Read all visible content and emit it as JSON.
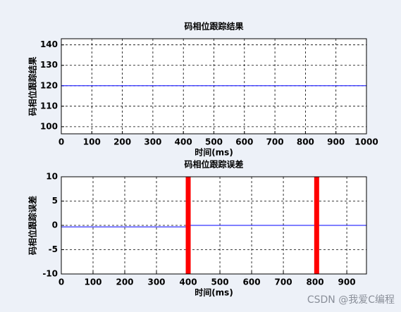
{
  "chart_data": [
    {
      "type": "line",
      "title": "码相位跟踪结果",
      "x_label": "时间(ms)",
      "y_label": "码相位跟踪结果",
      "xlim": [
        0,
        1000
      ],
      "xticks": [
        0,
        100,
        200,
        300,
        400,
        500,
        600,
        700,
        800,
        900,
        1000
      ],
      "ylim": [
        96.5,
        143
      ],
      "yticks": [
        100,
        110,
        120,
        130,
        140
      ],
      "grid": true,
      "series": [
        {
          "color": "#0000ff",
          "line_width": 1,
          "x": [
            0,
            1000
          ],
          "values": [
            120,
            120
          ]
        }
      ]
    },
    {
      "type": "line",
      "title": "码相位跟踪误差",
      "x_label": "时间(ms)",
      "y_label": "码相位跟踪误差",
      "xlim": [
        0,
        962
      ],
      "xticks": [
        0,
        100,
        200,
        300,
        400,
        500,
        600,
        700,
        800,
        900
      ],
      "ylim": [
        -10,
        10
      ],
      "yticks": [
        -10,
        -5,
        0,
        5,
        10
      ],
      "grid": true,
      "series": [
        {
          "color": "#0000ff",
          "line_width": 1,
          "x": [
            0,
            398,
            402,
            962
          ],
          "values": [
            -0.3,
            -0.3,
            0,
            0
          ]
        },
        {
          "color": "#ff0000",
          "line_width": 7,
          "x": [
            400,
            400,
            805,
            805
          ],
          "values": [
            -10,
            10,
            null,
            -10
          ]
        },
        {
          "color": "#ff0000",
          "line_width": 7,
          "x": [
            805,
            805
          ],
          "values": [
            -10,
            10
          ]
        }
      ]
    }
  ],
  "watermark": "CSDN @我爱C编程"
}
